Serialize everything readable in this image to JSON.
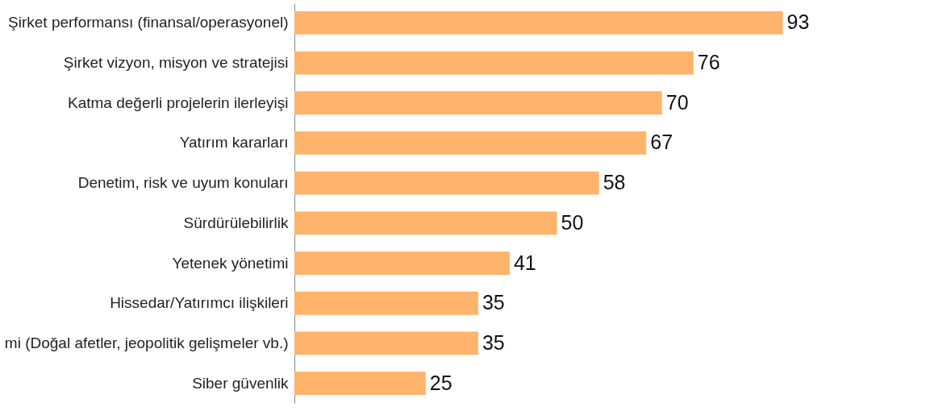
{
  "chart_data": {
    "type": "bar",
    "orientation": "horizontal",
    "data_labels": true,
    "categories": [
      "Şirket performansı (finansal/operasyonel)",
      "Şirket vizyon, misyon ve stratejisi",
      "Katma değerli projelerin ilerleyişi",
      "Yatırım kararları",
      "Denetim, risk ve uyum konuları",
      "Sürdürülebilirlik",
      "Yetenek yönetimi",
      "Hissedar/Yatırımcı ilişkileri",
      "mi (Doğal afetler, jeopolitik gelişmeler vb.)",
      "Siber güvenlik"
    ],
    "values": [
      93,
      76,
      70,
      67,
      58,
      50,
      41,
      35,
      35,
      25
    ],
    "color": "#ffb36b"
  }
}
